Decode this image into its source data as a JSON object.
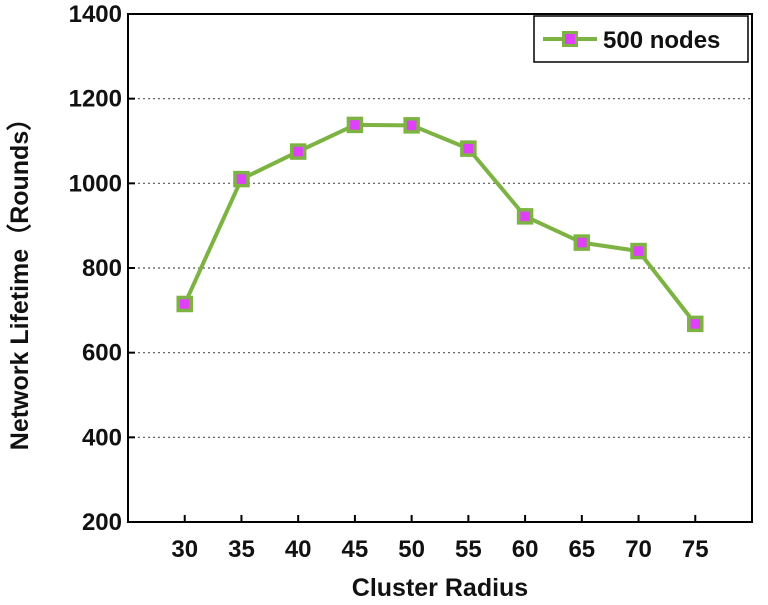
{
  "chart_data": {
    "type": "line",
    "xlabel": "Cluster Radius",
    "ylabel": "Network Lifetime（Rounds）",
    "x": [
      30,
      35,
      40,
      45,
      50,
      55,
      60,
      65,
      70,
      75
    ],
    "xlim": [
      25,
      80
    ],
    "ylim": [
      200,
      1400
    ],
    "yticks": [
      200,
      400,
      600,
      800,
      1000,
      1200,
      1400
    ],
    "grid": "horizontal-dotted",
    "legend_position": "top-right",
    "series": [
      {
        "name": "500 nodes",
        "values": [
          715,
          1010,
          1075,
          1138,
          1137,
          1082,
          922,
          860,
          840,
          668
        ],
        "line_color": "#7cb342",
        "marker": "square",
        "marker_fill": "#e040fb",
        "marker_edge": "#7cb342"
      }
    ]
  }
}
